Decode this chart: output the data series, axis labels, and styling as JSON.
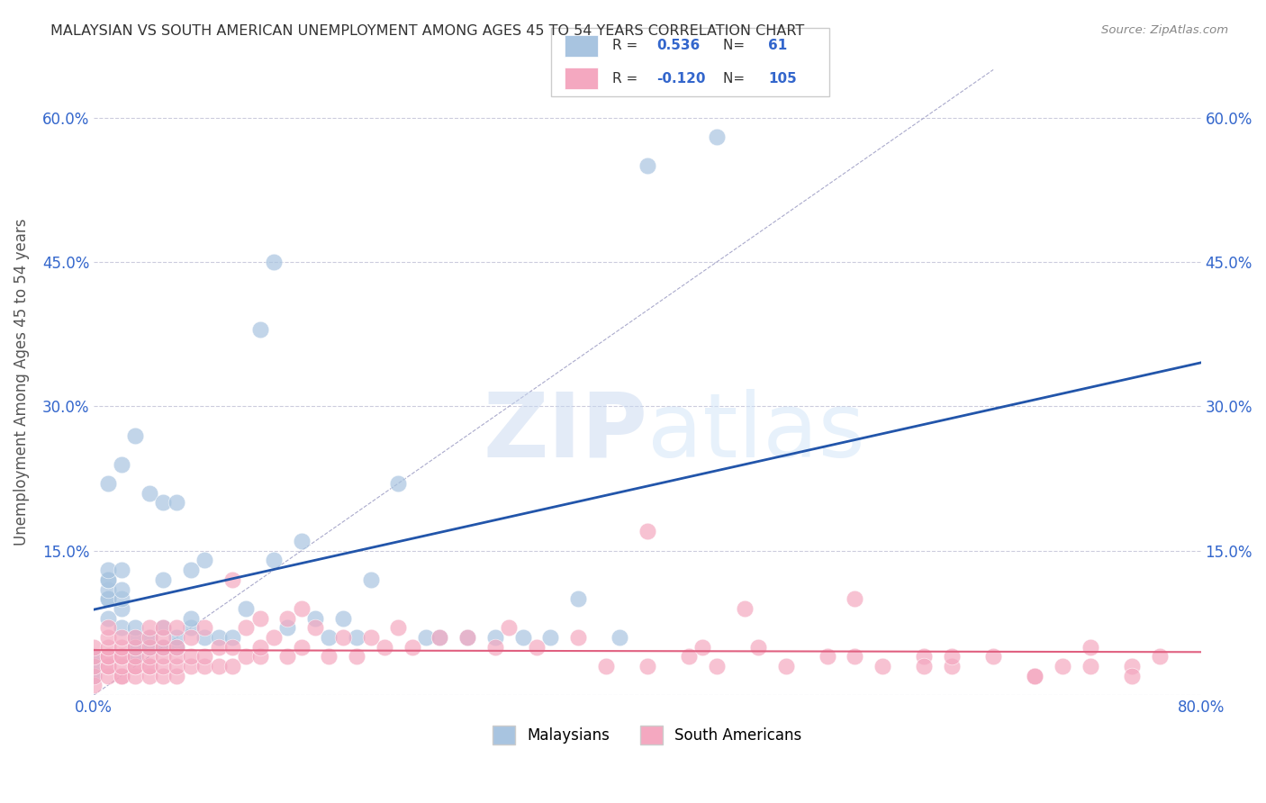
{
  "title": "MALAYSIAN VS SOUTH AMERICAN UNEMPLOYMENT AMONG AGES 45 TO 54 YEARS CORRELATION CHART",
  "source": "Source: ZipAtlas.com",
  "ylabel": "Unemployment Among Ages 45 to 54 years",
  "xlabel": "",
  "xlim": [
    0.0,
    0.8
  ],
  "ylim": [
    0.0,
    0.65
  ],
  "xticks": [
    0.0,
    0.1,
    0.2,
    0.3,
    0.4,
    0.5,
    0.6,
    0.7,
    0.8
  ],
  "xticklabels": [
    "0.0%",
    "",
    "",
    "",
    "",
    "",
    "",
    "",
    "80.0%"
  ],
  "yticks": [
    0.0,
    0.15,
    0.3,
    0.45,
    0.6
  ],
  "yticklabels": [
    "",
    "15.0%",
    "30.0%",
    "45.0%",
    "60.0%"
  ],
  "legend_R1": "0.536",
  "legend_N1": "61",
  "legend_R2": "-0.120",
  "legend_N2": "105",
  "blue_color": "#a8c4e0",
  "blue_line_color": "#2255aa",
  "pink_color": "#f4a8c0",
  "pink_line_color": "#e06080",
  "watermark": "ZIPatlas",
  "watermark_color": "#c8d8f0",
  "grid_color": "#ccccdd",
  "malaysian_x": [
    0.0,
    0.0,
    0.0,
    0.01,
    0.01,
    0.01,
    0.01,
    0.01,
    0.01,
    0.01,
    0.01,
    0.02,
    0.02,
    0.02,
    0.02,
    0.02,
    0.02,
    0.03,
    0.03,
    0.03,
    0.03,
    0.03,
    0.04,
    0.04,
    0.04,
    0.05,
    0.05,
    0.05,
    0.05,
    0.06,
    0.06,
    0.06,
    0.07,
    0.07,
    0.07,
    0.08,
    0.08,
    0.09,
    0.1,
    0.11,
    0.12,
    0.13,
    0.13,
    0.14,
    0.15,
    0.16,
    0.17,
    0.18,
    0.19,
    0.2,
    0.22,
    0.24,
    0.25,
    0.27,
    0.29,
    0.31,
    0.33,
    0.35,
    0.38,
    0.4,
    0.45
  ],
  "malaysian_y": [
    0.02,
    0.03,
    0.04,
    0.08,
    0.1,
    0.1,
    0.11,
    0.12,
    0.12,
    0.13,
    0.22,
    0.07,
    0.09,
    0.1,
    0.11,
    0.13,
    0.24,
    0.04,
    0.05,
    0.06,
    0.07,
    0.27,
    0.05,
    0.06,
    0.21,
    0.05,
    0.07,
    0.12,
    0.2,
    0.05,
    0.06,
    0.2,
    0.07,
    0.08,
    0.13,
    0.06,
    0.14,
    0.06,
    0.06,
    0.09,
    0.38,
    0.14,
    0.45,
    0.07,
    0.16,
    0.08,
    0.06,
    0.08,
    0.06,
    0.12,
    0.22,
    0.06,
    0.06,
    0.06,
    0.06,
    0.06,
    0.06,
    0.1,
    0.06,
    0.55,
    0.58
  ],
  "south_american_x": [
    0.0,
    0.0,
    0.0,
    0.0,
    0.0,
    0.01,
    0.01,
    0.01,
    0.01,
    0.01,
    0.01,
    0.01,
    0.01,
    0.02,
    0.02,
    0.02,
    0.02,
    0.02,
    0.02,
    0.02,
    0.03,
    0.03,
    0.03,
    0.03,
    0.03,
    0.03,
    0.04,
    0.04,
    0.04,
    0.04,
    0.04,
    0.04,
    0.04,
    0.05,
    0.05,
    0.05,
    0.05,
    0.05,
    0.05,
    0.06,
    0.06,
    0.06,
    0.06,
    0.06,
    0.07,
    0.07,
    0.07,
    0.08,
    0.08,
    0.08,
    0.09,
    0.09,
    0.1,
    0.1,
    0.1,
    0.11,
    0.11,
    0.12,
    0.12,
    0.12,
    0.13,
    0.14,
    0.14,
    0.15,
    0.15,
    0.16,
    0.17,
    0.18,
    0.19,
    0.2,
    0.21,
    0.22,
    0.23,
    0.25,
    0.27,
    0.29,
    0.3,
    0.32,
    0.35,
    0.37,
    0.4,
    0.43,
    0.45,
    0.48,
    0.5,
    0.53,
    0.55,
    0.57,
    0.6,
    0.62,
    0.65,
    0.68,
    0.7,
    0.72,
    0.75,
    0.4,
    0.44,
    0.47,
    0.55,
    0.6,
    0.62,
    0.68,
    0.72,
    0.75,
    0.77
  ],
  "south_american_y": [
    0.01,
    0.02,
    0.03,
    0.04,
    0.05,
    0.02,
    0.03,
    0.03,
    0.04,
    0.04,
    0.05,
    0.06,
    0.07,
    0.02,
    0.02,
    0.03,
    0.04,
    0.04,
    0.05,
    0.06,
    0.02,
    0.03,
    0.03,
    0.04,
    0.05,
    0.06,
    0.02,
    0.03,
    0.03,
    0.04,
    0.05,
    0.06,
    0.07,
    0.02,
    0.03,
    0.04,
    0.05,
    0.06,
    0.07,
    0.02,
    0.03,
    0.04,
    0.05,
    0.07,
    0.03,
    0.04,
    0.06,
    0.03,
    0.04,
    0.07,
    0.03,
    0.05,
    0.03,
    0.05,
    0.12,
    0.04,
    0.07,
    0.04,
    0.05,
    0.08,
    0.06,
    0.04,
    0.08,
    0.05,
    0.09,
    0.07,
    0.04,
    0.06,
    0.04,
    0.06,
    0.05,
    0.07,
    0.05,
    0.06,
    0.06,
    0.05,
    0.07,
    0.05,
    0.06,
    0.03,
    0.03,
    0.04,
    0.03,
    0.05,
    0.03,
    0.04,
    0.04,
    0.03,
    0.04,
    0.03,
    0.04,
    0.02,
    0.03,
    0.05,
    0.03,
    0.17,
    0.05,
    0.09,
    0.1,
    0.03,
    0.04,
    0.02,
    0.03,
    0.02,
    0.04
  ]
}
